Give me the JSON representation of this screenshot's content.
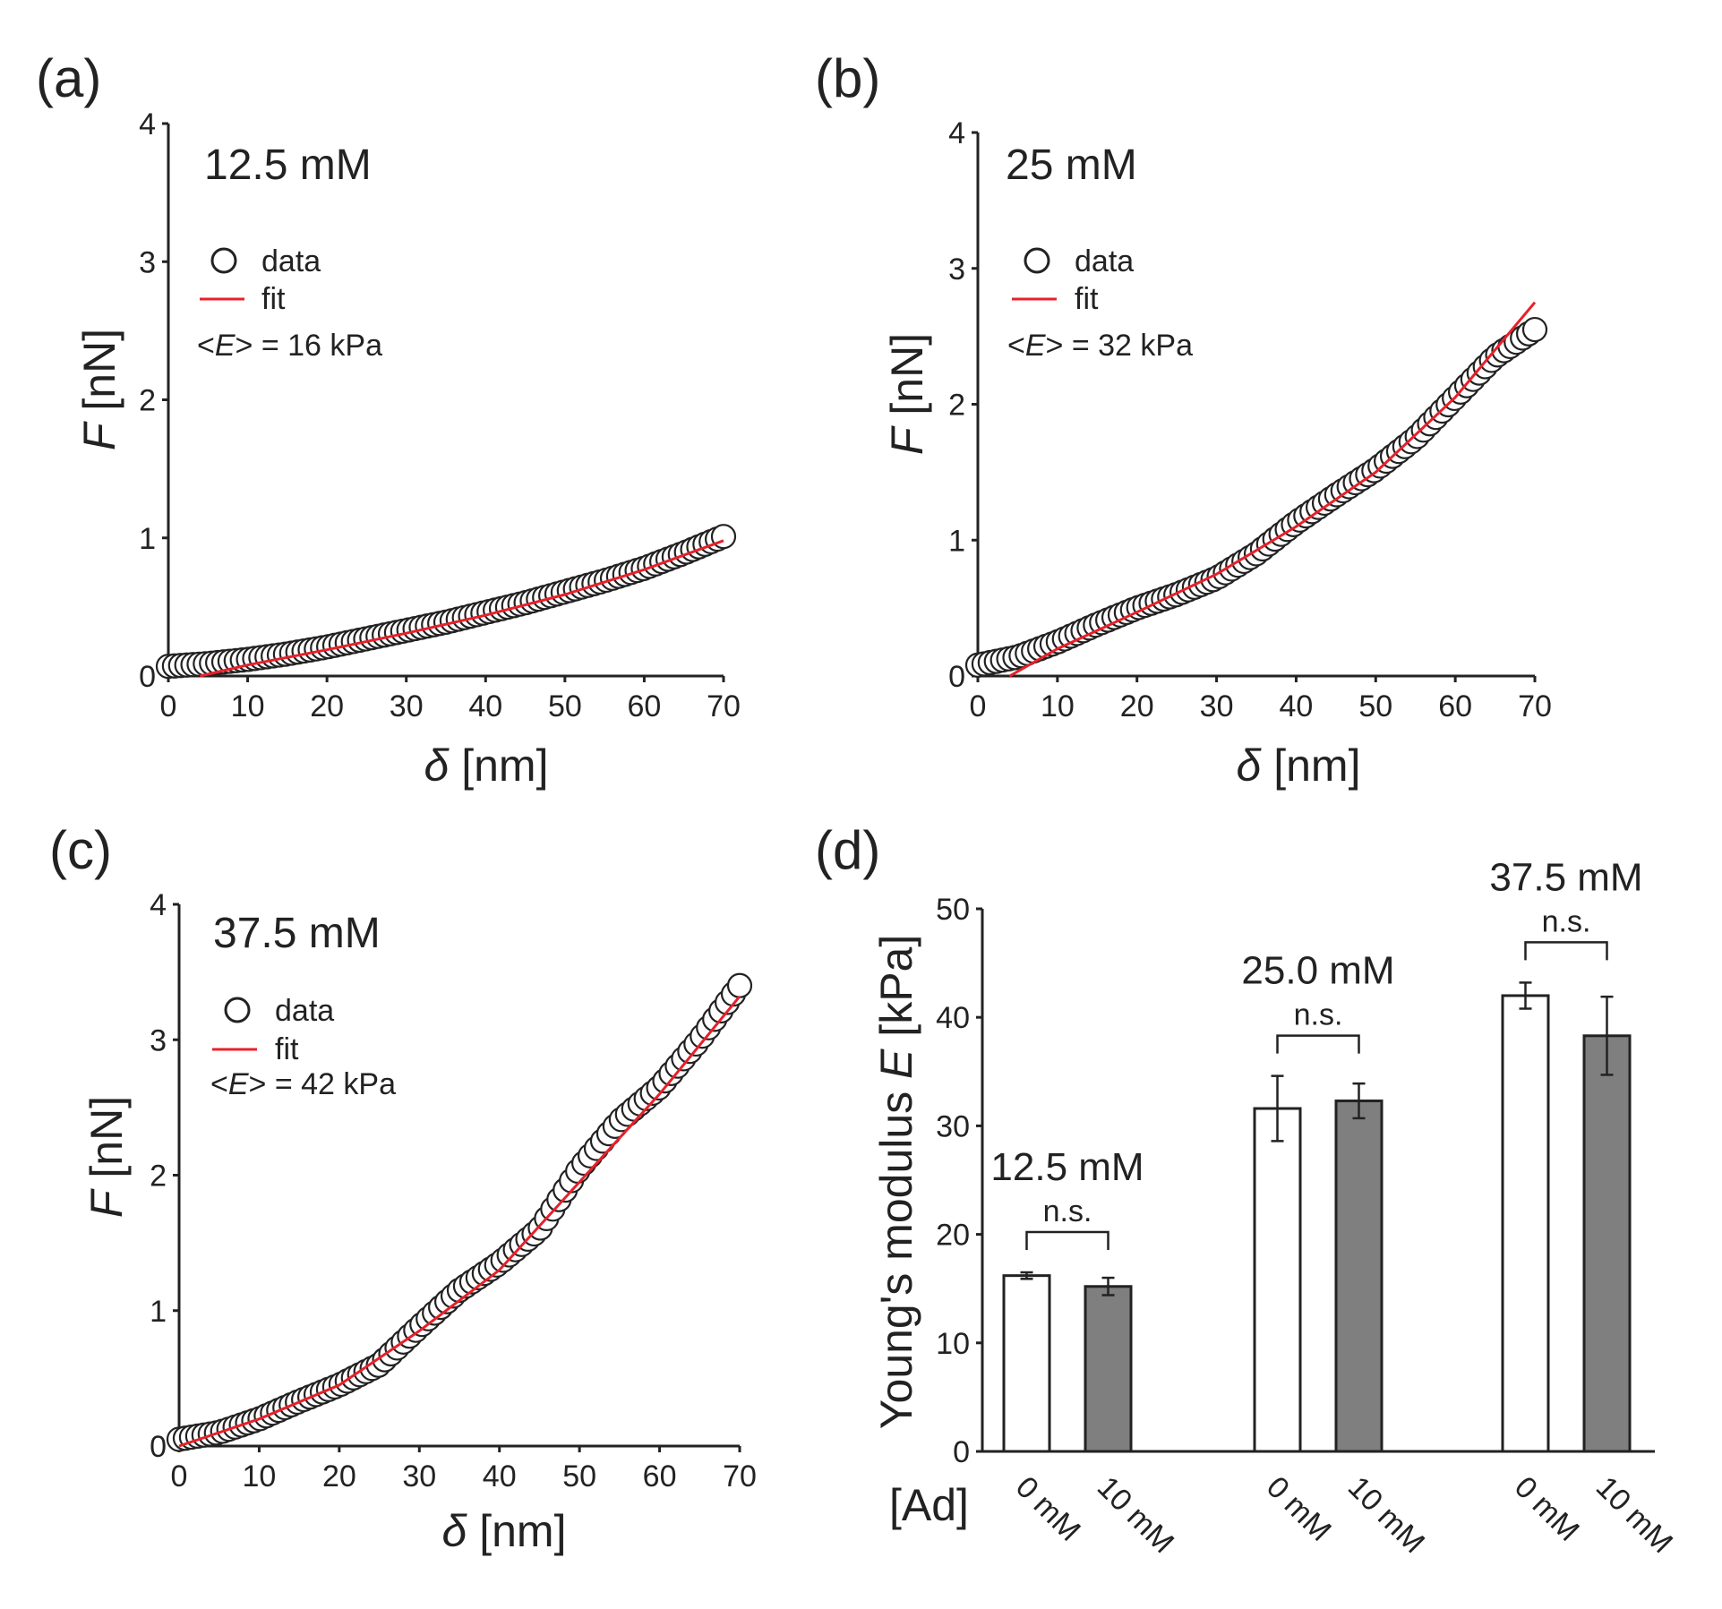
{
  "chart_data": [
    {
      "type": "scatter",
      "panel_label": "(a)",
      "annotation": "12.5 mM",
      "legend": [
        "data",
        "fit"
      ],
      "modulus_note": {
        "prefix": "<",
        "var": "E",
        "suffix": "> = 16 kPa"
      },
      "xlabel": {
        "var": "δ",
        "unit": " [nm]"
      },
      "ylabel": {
        "var": "F",
        "unit": " [nN]"
      },
      "xlim": [
        0,
        70
      ],
      "ylim": [
        0,
        4
      ],
      "xticks": [
        0,
        10,
        20,
        30,
        40,
        50,
        60,
        70
      ],
      "yticks": [
        0,
        1,
        2,
        3,
        4
      ],
      "x": [
        0,
        5,
        10,
        15,
        20,
        25,
        30,
        35,
        40,
        45,
        50,
        55,
        60,
        65,
        70
      ],
      "y": [
        0.07,
        0.09,
        0.12,
        0.16,
        0.21,
        0.27,
        0.33,
        0.39,
        0.46,
        0.53,
        0.61,
        0.69,
        0.78,
        0.89,
        1.01
      ],
      "fit": {
        "x": [
          4,
          10,
          20,
          30,
          40,
          50,
          60,
          70
        ],
        "y": [
          0.0,
          0.08,
          0.19,
          0.31,
          0.44,
          0.59,
          0.77,
          0.98
        ]
      },
      "colors": {
        "data_edge": "#222222",
        "fit": "#e8202a"
      }
    },
    {
      "type": "scatter",
      "panel_label": "(b)",
      "annotation": "25 mM",
      "legend": [
        "data",
        "fit"
      ],
      "modulus_note": {
        "prefix": "<",
        "var": "E",
        "suffix": "> = 32 kPa"
      },
      "xlabel": {
        "var": "δ",
        "unit": " [nm]"
      },
      "ylabel": {
        "var": "F",
        "unit": " [nN]"
      },
      "xlim": [
        0,
        70
      ],
      "ylim": [
        0,
        4
      ],
      "xticks": [
        0,
        10,
        20,
        30,
        40,
        50,
        60,
        70
      ],
      "yticks": [
        0,
        1,
        2,
        3,
        4
      ],
      "x": [
        0,
        5,
        10,
        15,
        20,
        25,
        30,
        35,
        40,
        45,
        50,
        55,
        60,
        65,
        70
      ],
      "y": [
        0.08,
        0.14,
        0.25,
        0.38,
        0.5,
        0.6,
        0.72,
        0.9,
        1.13,
        1.33,
        1.52,
        1.75,
        2.05,
        2.35,
        2.55
      ],
      "fit": {
        "x": [
          4,
          10,
          20,
          30,
          40,
          50,
          60,
          70
        ],
        "y": [
          0.0,
          0.2,
          0.47,
          0.75,
          1.1,
          1.5,
          2.05,
          2.75
        ]
      },
      "colors": {
        "data_edge": "#222222",
        "fit": "#e8202a"
      }
    },
    {
      "type": "scatter",
      "panel_label": "(c)",
      "annotation": "37.5 mM",
      "legend": [
        "data",
        "fit"
      ],
      "modulus_note": {
        "prefix": "<",
        "var": "E",
        "suffix": "> = 42 kPa"
      },
      "xlabel": {
        "var": "δ",
        "unit": " [nm]"
      },
      "ylabel": {
        "var": "F",
        "unit": " [nN]"
      },
      "xlim": [
        0,
        70
      ],
      "ylim": [
        0,
        4
      ],
      "xticks": [
        0,
        10,
        20,
        30,
        40,
        50,
        60,
        70
      ],
      "yticks": [
        0,
        1,
        2,
        3,
        4
      ],
      "x": [
        0,
        5,
        10,
        15,
        20,
        25,
        30,
        35,
        40,
        45,
        50,
        55,
        60,
        65,
        70
      ],
      "y": [
        0.05,
        0.1,
        0.2,
        0.33,
        0.45,
        0.6,
        0.88,
        1.15,
        1.35,
        1.6,
        2.05,
        2.4,
        2.65,
        3.0,
        3.4
      ],
      "fit": {
        "x": [
          0,
          10,
          20,
          30,
          40,
          50,
          60,
          70
        ],
        "y": [
          0.0,
          0.2,
          0.45,
          0.85,
          1.3,
          1.95,
          2.6,
          3.32
        ]
      },
      "colors": {
        "data_edge": "#222222",
        "fit": "#e8202a"
      }
    },
    {
      "type": "bar",
      "panel_label": "(d)",
      "ylabel": {
        "prefix": "Young's modulus ",
        "var": "E",
        "unit": " [kPa]"
      },
      "ylim": [
        0,
        50
      ],
      "yticks": [
        0,
        10,
        20,
        30,
        40,
        50
      ],
      "ad_label": "[Ad]",
      "groups": [
        {
          "label": "12.5 mM",
          "significance": "n.s.",
          "categories": [
            "0 mM",
            "10 mM"
          ],
          "values": [
            16.2,
            15.2
          ],
          "errors": [
            0.3,
            0.8
          ]
        },
        {
          "label": "25.0 mM",
          "significance": "n.s.",
          "categories": [
            "0 mM",
            "10 mM"
          ],
          "values": [
            31.6,
            32.3
          ],
          "errors": [
            3.0,
            1.6
          ]
        },
        {
          "label": "37.5 mM",
          "significance": "n.s.",
          "categories": [
            "0 mM",
            "10 mM"
          ],
          "values": [
            42.0,
            38.3
          ],
          "errors": [
            1.2,
            3.6
          ]
        }
      ],
      "colors": {
        "bar_0mM": "#ffffff",
        "bar_10mM": "#7f7f7f",
        "edge": "#222222"
      }
    }
  ]
}
